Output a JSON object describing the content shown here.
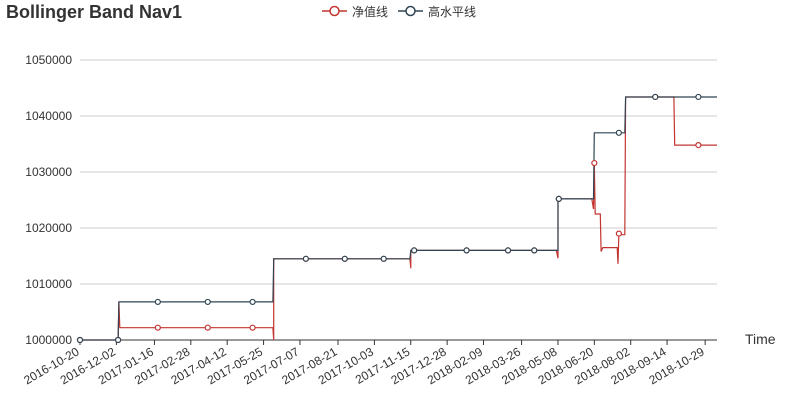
{
  "chart_data": {
    "type": "line",
    "title": "Bollinger Band Nav1",
    "xlabel": "Time",
    "ylabel": "",
    "ylim": [
      1000000,
      1050000
    ],
    "yticks": [
      "1000000",
      "1010000",
      "1020000",
      "1030000",
      "1040000",
      "1050000"
    ],
    "xticks": [
      "2016-10-20",
      "2016-12-02",
      "2017-01-16",
      "2017-02-28",
      "2017-04-12",
      "2017-05-25",
      "2017-07-07",
      "2017-08-21",
      "2017-10-03",
      "2017-11-15",
      "2017-12-28",
      "2018-02-09",
      "2018-03-26",
      "2018-05-08",
      "2018-06-20",
      "2018-08-02",
      "2018-09-14",
      "2018-10-29"
    ],
    "grid": "horizontal",
    "legend_position": "top-center",
    "series": [
      {
        "name": "净值线",
        "color": "#c23531",
        "points": [
          [
            "2016-10-20",
            1000000
          ],
          [
            "2016-12-04",
            1000000
          ],
          [
            "2016-12-05",
            1006800
          ],
          [
            "2016-12-06",
            1002200
          ],
          [
            "2017-01-20",
            1002200
          ],
          [
            "2017-03-20",
            1002200
          ],
          [
            "2017-05-12",
            1002200
          ],
          [
            "2017-06-05",
            1002200
          ],
          [
            "2017-06-06",
            1000000
          ],
          [
            "2017-06-06",
            1014500
          ],
          [
            "2017-07-14",
            1014500
          ],
          [
            "2017-08-29",
            1014500
          ],
          [
            "2017-10-14",
            1014500
          ],
          [
            "2017-11-14",
            1014500
          ],
          [
            "2017-11-15",
            1012800
          ],
          [
            "2017-11-15",
            1015600
          ],
          [
            "2017-11-16",
            1016000
          ],
          [
            "2018-01-20",
            1016000
          ],
          [
            "2018-03-10",
            1016000
          ],
          [
            "2018-04-10",
            1016000
          ],
          [
            "2018-05-06",
            1016000
          ],
          [
            "2018-05-08",
            1014600
          ],
          [
            "2018-05-08",
            1025200
          ],
          [
            "2018-06-17",
            1025200
          ],
          [
            "2018-06-19",
            1023400
          ],
          [
            "2018-06-20",
            1031600
          ],
          [
            "2018-06-21",
            1022500
          ],
          [
            "2018-06-27",
            1022500
          ],
          [
            "2018-06-28",
            1015800
          ],
          [
            "2018-06-30",
            1016500
          ],
          [
            "2018-07-17",
            1016500
          ],
          [
            "2018-07-18",
            1013600
          ],
          [
            "2018-07-19",
            1019000
          ],
          [
            "2018-07-21",
            1018800
          ],
          [
            "2018-07-26",
            1018800
          ],
          [
            "2018-07-27",
            1043400
          ],
          [
            "2018-08-31",
            1043400
          ],
          [
            "2018-09-22",
            1043400
          ],
          [
            "2018-09-23",
            1034800
          ],
          [
            "2018-10-21",
            1034800
          ],
          [
            "2018-11-12",
            1034800
          ]
        ],
        "markers": [
          [
            "2016-10-20",
            1000000
          ],
          [
            "2016-12-04",
            1000000
          ],
          [
            "2017-01-20",
            1002200
          ],
          [
            "2017-03-20",
            1002200
          ],
          [
            "2017-05-12",
            1002200
          ],
          [
            "2017-07-14",
            1014500
          ],
          [
            "2017-08-29",
            1014500
          ],
          [
            "2017-10-14",
            1014500
          ],
          [
            "2017-11-19",
            1016000
          ],
          [
            "2018-01-20",
            1016000
          ],
          [
            "2018-03-10",
            1016000
          ],
          [
            "2018-04-10",
            1016000
          ],
          [
            "2018-05-09",
            1025200
          ],
          [
            "2018-06-20",
            1031600
          ],
          [
            "2018-07-19",
            1019000
          ],
          [
            "2018-08-31",
            1043400
          ],
          [
            "2018-10-21",
            1034800
          ]
        ]
      },
      {
        "name": "高水平线",
        "color": "#2f4554",
        "points": [
          [
            "2016-10-20",
            1000000
          ],
          [
            "2016-12-04",
            1000000
          ],
          [
            "2016-12-05",
            1006800
          ],
          [
            "2017-06-05",
            1006800
          ],
          [
            "2017-06-06",
            1014500
          ],
          [
            "2017-11-14",
            1014500
          ],
          [
            "2017-11-15",
            1016000
          ],
          [
            "2018-05-08",
            1016000
          ],
          [
            "2018-05-08",
            1025200
          ],
          [
            "2018-06-19",
            1025200
          ],
          [
            "2018-06-20",
            1037000
          ],
          [
            "2018-07-26",
            1037000
          ],
          [
            "2018-07-27",
            1043400
          ],
          [
            "2018-11-12",
            1043400
          ]
        ],
        "markers": [
          [
            "2016-10-20",
            1000000
          ],
          [
            "2016-12-04",
            1000000
          ],
          [
            "2017-01-20",
            1006800
          ],
          [
            "2017-03-20",
            1006800
          ],
          [
            "2017-05-12",
            1006800
          ],
          [
            "2017-07-14",
            1014500
          ],
          [
            "2017-08-29",
            1014500
          ],
          [
            "2017-10-14",
            1014500
          ],
          [
            "2017-11-19",
            1016000
          ],
          [
            "2018-01-20",
            1016000
          ],
          [
            "2018-03-10",
            1016000
          ],
          [
            "2018-04-10",
            1016000
          ],
          [
            "2018-05-09",
            1025200
          ],
          [
            "2018-07-19",
            1037000
          ],
          [
            "2018-08-31",
            1043400
          ],
          [
            "2018-10-21",
            1043400
          ]
        ]
      }
    ]
  }
}
